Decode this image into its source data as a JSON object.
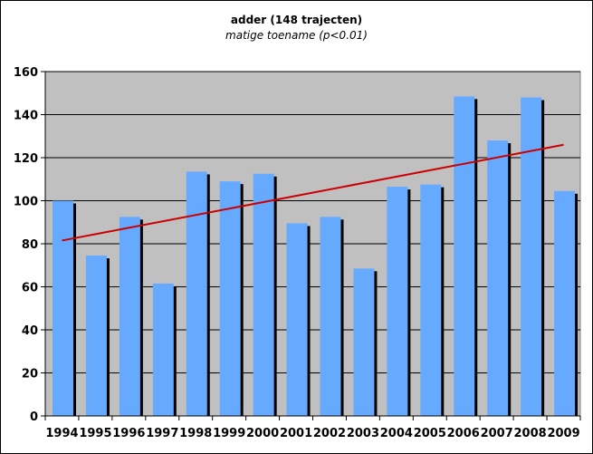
{
  "chart_data": {
    "type": "bar",
    "title": "adder (148 trajecten)",
    "subtitle": "matige toename (p<0.01)",
    "xlabel": "",
    "ylabel": "",
    "categories": [
      "1994",
      "1995",
      "1996",
      "1997",
      "1998",
      "1999",
      "2000",
      "2001",
      "2002",
      "2003",
      "2004",
      "2005",
      "2006",
      "2007",
      "2008",
      "2009"
    ],
    "values": [
      100,
      74.5,
      92.5,
      61.5,
      113.5,
      109,
      112.5,
      89.5,
      92.5,
      68.5,
      106.5,
      107.5,
      148.5,
      128,
      148,
      104.5
    ],
    "ylim": [
      0,
      160
    ],
    "yticks": [
      "0",
      "20",
      "40",
      "60",
      "80",
      "100",
      "120",
      "140",
      "160"
    ],
    "trendline": {
      "from": 81.5,
      "to": 126
    },
    "grid": true,
    "colors": {
      "bar": "#66aaff",
      "bar_shadow": "#000000",
      "plot_bg": "#c0c0c0",
      "trend": "#cc0000",
      "grid": "#000000"
    }
  }
}
